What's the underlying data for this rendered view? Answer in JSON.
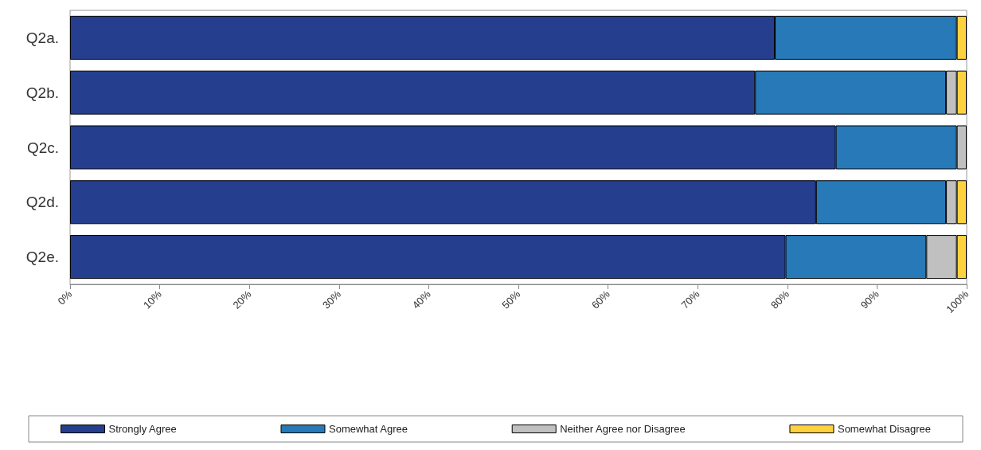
{
  "chart_data": {
    "type": "bar",
    "orientation": "horizontal",
    "stacked": true,
    "categories": [
      "Q2a.",
      "Q2b.",
      "Q2c.",
      "Q2d.",
      "Q2e."
    ],
    "series": [
      {
        "name": "Strongly Agree",
        "color": "#253f8e",
        "values": [
          78.6,
          76.4,
          85.4,
          83.2,
          79.8
        ]
      },
      {
        "name": "Somewhat Agree",
        "color": "#2779b8",
        "values": [
          20.3,
          21.3,
          13.5,
          14.5,
          15.7
        ]
      },
      {
        "name": "Neither Agree nor Disagree",
        "color": "#c0c0c0",
        "values": [
          null,
          1.2,
          1.1,
          1.2,
          3.4
        ]
      },
      {
        "name": "Somewhat Disagree",
        "color": "#fdd23e",
        "values": [
          1.1,
          1.1,
          null,
          1.1,
          1.1
        ]
      }
    ],
    "xlim": [
      0,
      100
    ],
    "xticks": [
      {
        "value": 0,
        "label": "0%"
      },
      {
        "value": 10,
        "label": "10%"
      },
      {
        "value": 20,
        "label": "20%"
      },
      {
        "value": 30,
        "label": "30%"
      },
      {
        "value": 40,
        "label": "40%"
      },
      {
        "value": 50,
        "label": "50%"
      },
      {
        "value": 60,
        "label": "60%"
      },
      {
        "value": 70,
        "label": "70%"
      },
      {
        "value": 80,
        "label": "80%"
      },
      {
        "value": 90,
        "label": "90%"
      },
      {
        "value": 100,
        "label": "100%"
      }
    ],
    "grid": false,
    "legend": "bottom"
  }
}
